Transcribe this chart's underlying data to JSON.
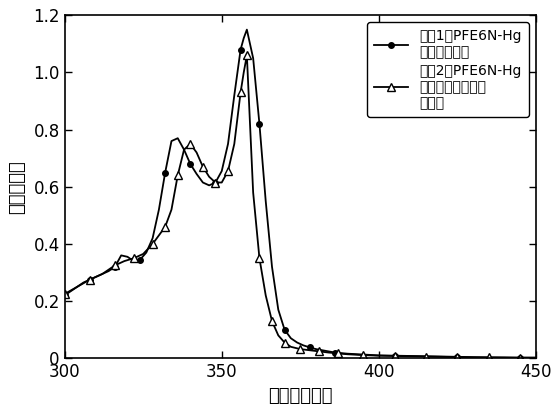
{
  "xlabel": "波长（纳米）",
  "ylabel": "吸光度曲线",
  "xlim": [
    300,
    450
  ],
  "ylim": [
    0,
    1.2
  ],
  "xticks": [
    300,
    350,
    400,
    450
  ],
  "yticks": [
    0,
    0.2,
    0.4,
    0.6,
    0.8,
    1.0,
    1.2
  ],
  "legend1": "曲线1：PFE6N-Hg\n膜吸光度曲线",
  "legend2": "曲线2：PFE6N-Hg\n膜氯苯洗涤后吸光\n度曲线",
  "curve1_x": [
    300,
    302,
    304,
    306,
    308,
    310,
    312,
    314,
    316,
    318,
    320,
    322,
    324,
    326,
    328,
    330,
    332,
    334,
    336,
    338,
    340,
    342,
    344,
    346,
    348,
    350,
    352,
    354,
    356,
    357,
    358,
    360,
    362,
    364,
    366,
    368,
    370,
    372,
    374,
    376,
    378,
    380,
    382,
    384,
    386,
    390,
    395,
    400,
    405,
    410,
    415,
    420,
    425,
    430,
    435,
    440,
    445,
    450
  ],
  "curve1_y": [
    0.22,
    0.235,
    0.25,
    0.265,
    0.275,
    0.285,
    0.295,
    0.305,
    0.32,
    0.36,
    0.355,
    0.34,
    0.345,
    0.37,
    0.42,
    0.52,
    0.65,
    0.76,
    0.77,
    0.73,
    0.68,
    0.645,
    0.615,
    0.605,
    0.615,
    0.655,
    0.75,
    0.92,
    1.08,
    1.12,
    1.15,
    1.05,
    0.82,
    0.55,
    0.32,
    0.17,
    0.1,
    0.07,
    0.055,
    0.045,
    0.038,
    0.032,
    0.028,
    0.024,
    0.02,
    0.016,
    0.013,
    0.01,
    0.009,
    0.008,
    0.007,
    0.006,
    0.005,
    0.004,
    0.003,
    0.003,
    0.002,
    0.002
  ],
  "curve2_x": [
    300,
    304,
    308,
    312,
    316,
    319,
    322,
    325,
    328,
    330,
    332,
    334,
    336,
    338,
    340,
    342,
    344,
    346,
    348,
    350,
    352,
    354,
    356,
    357,
    358,
    360,
    362,
    364,
    366,
    368,
    370,
    372,
    375,
    378,
    381,
    384,
    387,
    390,
    395,
    400,
    405,
    410,
    415,
    420,
    425,
    430,
    435,
    440,
    445,
    450
  ],
  "curve2_y": [
    0.225,
    0.25,
    0.275,
    0.295,
    0.325,
    0.34,
    0.35,
    0.365,
    0.4,
    0.43,
    0.46,
    0.52,
    0.64,
    0.73,
    0.75,
    0.72,
    0.67,
    0.635,
    0.615,
    0.615,
    0.655,
    0.75,
    0.93,
    1.0,
    1.06,
    0.58,
    0.35,
    0.22,
    0.13,
    0.08,
    0.055,
    0.04,
    0.032,
    0.028,
    0.024,
    0.02,
    0.017,
    0.014,
    0.011,
    0.009,
    0.008,
    0.007,
    0.006,
    0.005,
    0.004,
    0.003,
    0.003,
    0.002,
    0.002,
    0.002
  ],
  "background_color": "#ffffff",
  "line_color": "#000000",
  "fontsize_label": 13,
  "fontsize_tick": 12,
  "fontsize_legend": 10
}
